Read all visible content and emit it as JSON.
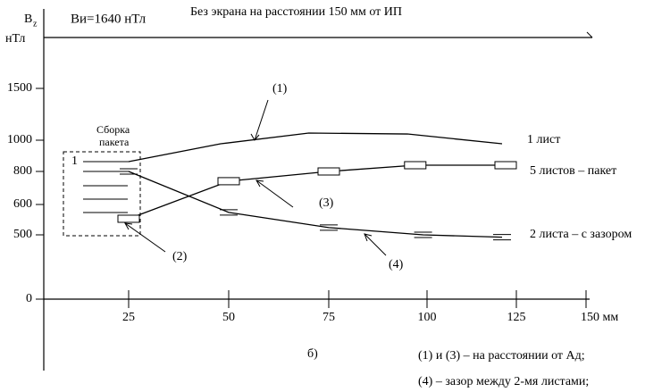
{
  "chart_data": {
    "type": "line",
    "title": "Без экрана на расстоянии 150 мм от ИП",
    "y_label": {
      "main": "В",
      "sub": "z"
    },
    "y_unit": "нТл",
    "source_note": "Ви=1640 нТл",
    "box_label": [
      "Сборка",
      "пакета"
    ],
    "box_number": "1",
    "annotations": [
      "(1)",
      "(2)",
      "(3)",
      "(4)"
    ],
    "panel": "б)",
    "notes": [
      "(1) и (3) –  на расстоянии от Ад;",
      "(4) – зазор между 2-мя листами;"
    ],
    "xticks": [
      25,
      50,
      75,
      100,
      125,
      {
        "value": 150,
        "label": "150 мм"
      }
    ],
    "yticks": [
      0,
      500,
      600,
      800,
      1000,
      1500
    ],
    "series": [
      {
        "name": "1 лист",
        "color": "#000000",
        "marker": "none",
        "x": [
          25,
          48,
          70,
          95,
          121
        ],
        "values": [
          863,
          977,
          1069,
          1060,
          977
        ]
      },
      {
        "name": "5 листов – пакет",
        "color": "#000000",
        "marker": "rect",
        "x": [
          25,
          50,
          75,
          97,
          122
        ],
        "values": [
          553,
          741,
          800,
          840,
          840
        ]
      },
      {
        "name": "2 листа – с зазором",
        "color": "#000000",
        "marker": "dash",
        "x": [
          25,
          50,
          75,
          99,
          121
        ],
        "values": [
          800,
          574,
          524,
          500,
          482
        ]
      }
    ]
  }
}
